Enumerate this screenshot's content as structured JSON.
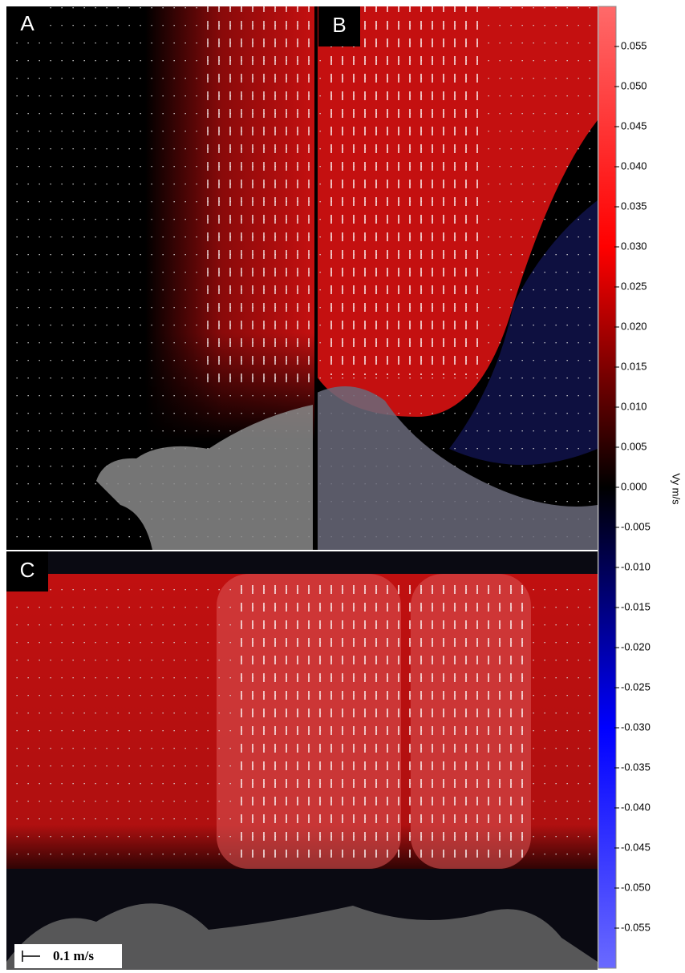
{
  "panels": [
    {
      "label": "A"
    },
    {
      "label": "B"
    },
    {
      "label": "C"
    }
  ],
  "colorbar": {
    "label": "Vy m/s",
    "lim": [
      -0.06,
      0.06
    ],
    "ticks": [
      0.055,
      {
        "value": 0.05,
        "label": "0.050"
      },
      0.045,
      {
        "value": 0.04,
        "label": "0.040"
      },
      0.035,
      {
        "value": 0.03,
        "label": "0.030"
      },
      0.025,
      {
        "value": 0.02,
        "label": "0.020"
      },
      0.015,
      {
        "value": 0.01,
        "label": "0.010"
      },
      0.005,
      {
        "value": 0,
        "label": "0.000"
      },
      -0.005,
      {
        "value": -0.01,
        "label": "-0.010"
      },
      -0.015,
      {
        "value": -0.02,
        "label": "-0.020"
      },
      -0.025,
      {
        "value": -0.03,
        "label": "-0.030"
      },
      -0.035,
      {
        "value": -0.04,
        "label": "-0.040"
      },
      -0.045,
      {
        "value": -0.05,
        "label": "-0.050"
      },
      -0.055
    ]
  },
  "scale_bar": {
    "label": "0.1 m/s"
  }
}
